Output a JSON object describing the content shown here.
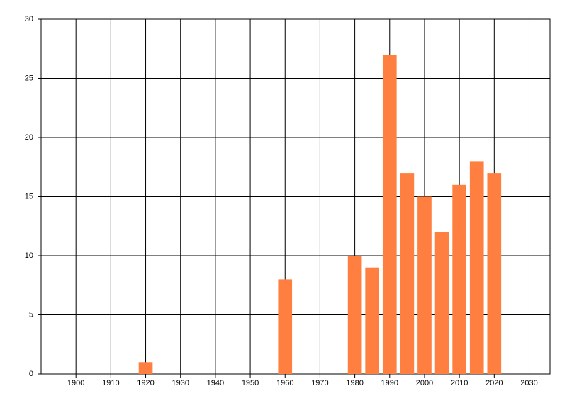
{
  "chart_data": {
    "type": "bar",
    "x": [
      1920,
      1960,
      1980,
      1985,
      1990,
      1995,
      2000,
      2005,
      2010,
      2015,
      2020
    ],
    "values": [
      1,
      8,
      10,
      9,
      27,
      17,
      15,
      12,
      16,
      18,
      17
    ],
    "color": "#ff7f40",
    "xlim": [
      1890,
      2036
    ],
    "xticks": [
      1900,
      1910,
      1920,
      1930,
      1940,
      1950,
      1960,
      1970,
      1980,
      1990,
      2000,
      2010,
      2020,
      2030
    ],
    "ylim": [
      0,
      30
    ],
    "yticks": [
      0,
      5,
      10,
      15,
      20,
      25,
      30
    ],
    "grid": true
  }
}
